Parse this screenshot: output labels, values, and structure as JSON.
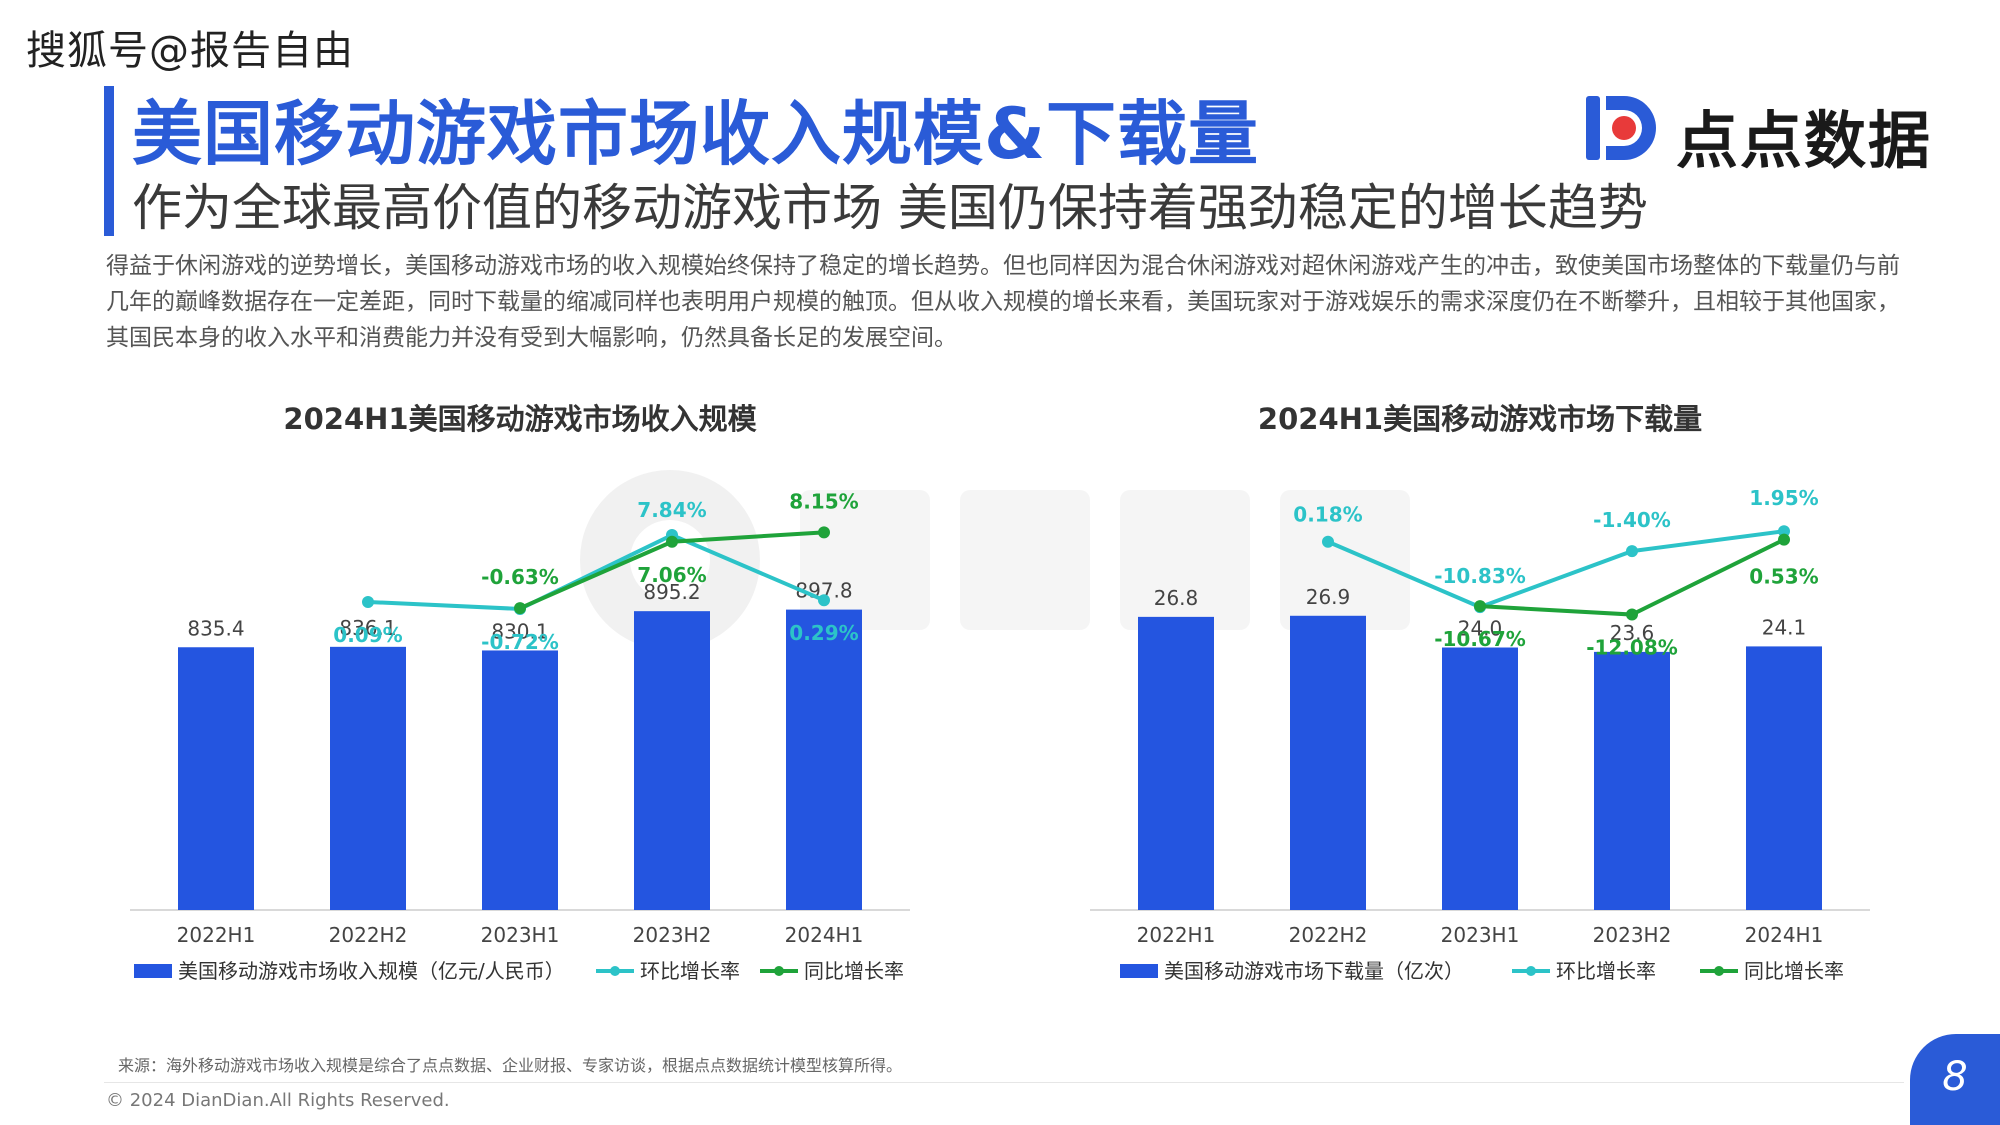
{
  "watermark_source": "搜狐号@报告自由",
  "header": {
    "title": "美国移动游戏市场收入规模&下载量",
    "subtitle": "作为全球最高价值的移动游戏市场 美国仍保持着强劲稳定的增长趋势",
    "logo_text": "点点数据"
  },
  "body": {
    "lines": [
      "得益于休闲游戏的逆势增长，美国移动游戏市场的收入规模始终保持了稳定的增长趋势。但也同样因为混合休闲游戏对超休闲游戏产生的冲击，致使美国市场整体的下载量仍与前",
      "几年的巅峰数据存在一定差距，同时下载量的缩减同样也表明用户规模的触顶。但从收入规模的增长来看，美国玩家对于游戏娱乐的需求深度仍在不断攀升，且相较于其他国家，",
      "其国民本身的收入水平和消费能力并没有受到大幅影响，仍然具备长足的发展空间。"
    ]
  },
  "colors": {
    "accent": "#2a5bd7",
    "bar": "#2455e0",
    "qoq": "#2cc3c8",
    "yoy": "#1fa33a"
  },
  "chart_data": [
    {
      "type": "bar",
      "title": "2024H1美国移动游戏市场收入规模",
      "categories": [
        "2022H1",
        "2022H2",
        "2023H1",
        "2023H2",
        "2024H1"
      ],
      "series": [
        {
          "name": "美国移动游戏市场收入规模（亿元/人民币）",
          "type": "bar",
          "values": [
            835.4,
            836.1,
            830.1,
            895.2,
            897.8
          ],
          "labels": [
            "835.4",
            "836.1",
            "830.1",
            "895.2",
            "897.8"
          ]
        },
        {
          "name": "环比增长率",
          "type": "line",
          "values": [
            null,
            0.09,
            -0.72,
            7.84,
            0.29
          ],
          "labels": [
            null,
            "0.09%",
            "-0.72%",
            "7.84%",
            "0.29%"
          ]
        },
        {
          "name": "同比增长率",
          "type": "line",
          "values": [
            null,
            null,
            -0.63,
            7.06,
            8.15
          ],
          "labels": [
            null,
            null,
            "-0.63%",
            "7.06%",
            "8.15%"
          ]
        }
      ]
    },
    {
      "type": "bar",
      "title": "2024H1美国移动游戏市场下载量",
      "categories": [
        "2022H1",
        "2022H2",
        "2023H1",
        "2023H2",
        "2024H1"
      ],
      "series": [
        {
          "name": "美国移动游戏市场下载量（亿次）",
          "type": "bar",
          "values": [
            26.8,
            26.9,
            24.0,
            23.6,
            24.1
          ],
          "labels": [
            "26.8",
            "26.9",
            "24.0",
            "23.6",
            "24.1"
          ]
        },
        {
          "name": "环比增长率",
          "type": "line",
          "values": [
            null,
            0.18,
            -10.83,
            -1.4,
            1.95
          ],
          "labels": [
            null,
            "0.18%",
            "-10.83%",
            "-1.40%",
            "1.95%"
          ]
        },
        {
          "name": "同比增长率",
          "type": "line",
          "values": [
            null,
            null,
            -10.67,
            -12.08,
            0.53
          ],
          "labels": [
            null,
            null,
            "-10.67%",
            "-12.08%",
            "0.53%"
          ]
        }
      ]
    }
  ],
  "footer": {
    "source": "来源：海外移动游戏市场收入规模是综合了点点数据、企业财报、专家访谈，根据点点数据统计模型核算所得。",
    "copyright": "© 2024 DianDian.All Rights Reserved.",
    "page": "8"
  }
}
